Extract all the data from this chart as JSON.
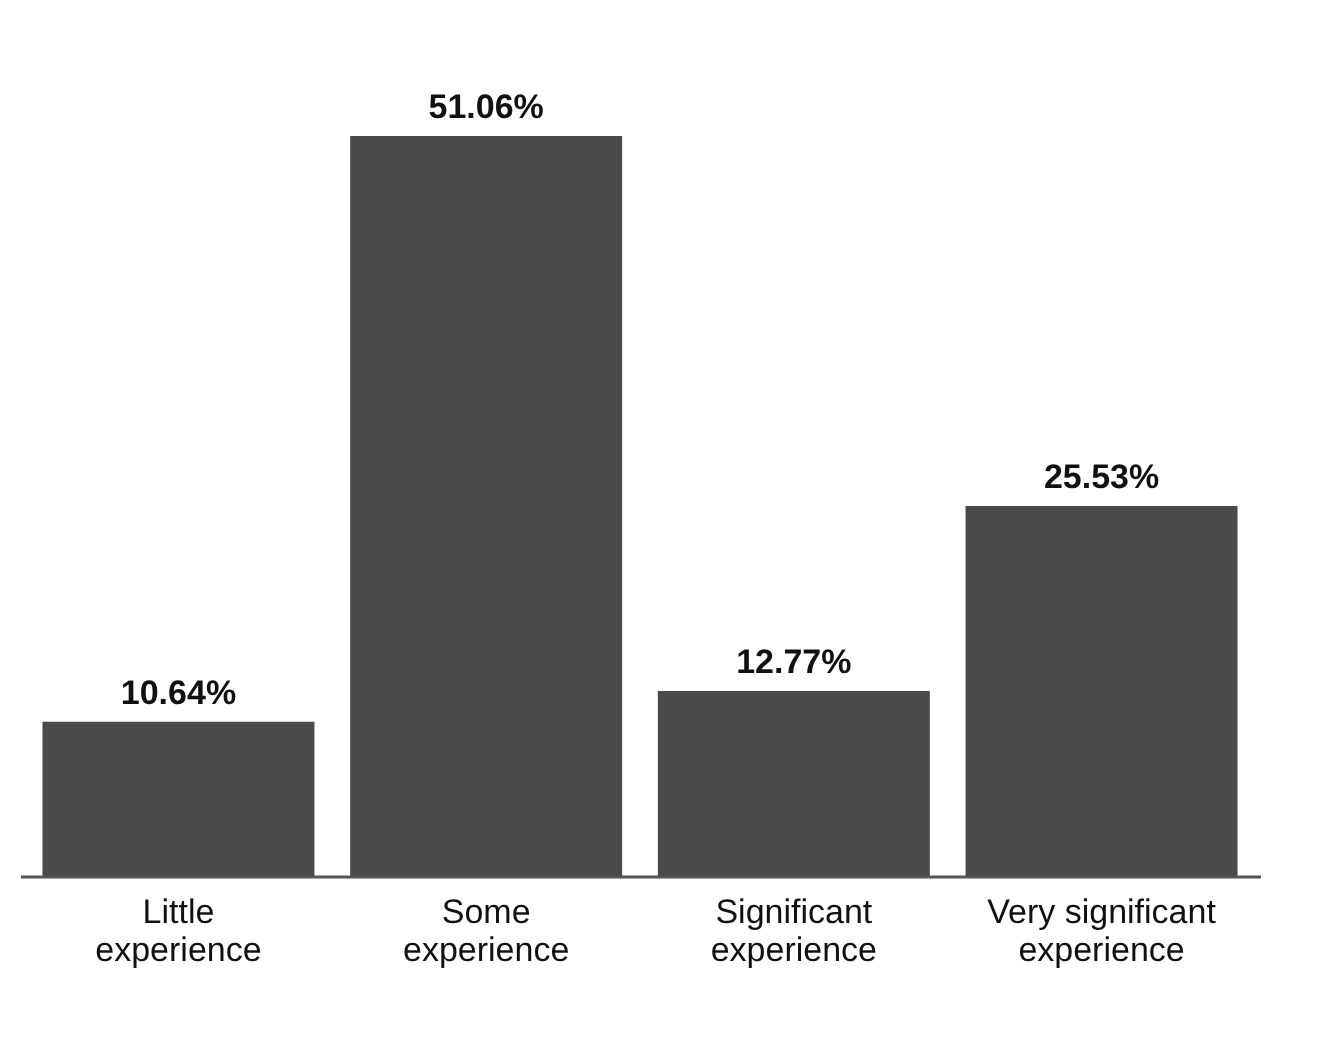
{
  "chart_data": {
    "type": "bar",
    "categories": [
      "Little experience",
      "Some experience",
      "Significant experience",
      "Very significant experience"
    ],
    "values": [
      10.64,
      51.06,
      12.77,
      25.53
    ],
    "value_labels": [
      "10.64%",
      "51.06%",
      "12.77%",
      "25.53%"
    ],
    "color": "#4a4a4a",
    "grid": false
  }
}
